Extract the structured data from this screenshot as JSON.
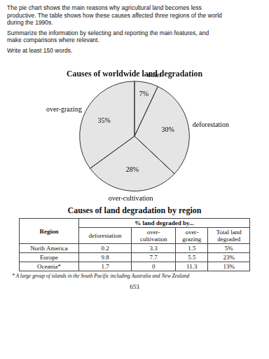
{
  "chart_data": {
    "type": "pie",
    "title": "Causes of worldwide land degradation",
    "categories": [
      "other",
      "deforestation",
      "over-cultivation",
      "over-grazing"
    ],
    "values": [
      7,
      30,
      28,
      35
    ],
    "value_labels": [
      "7%",
      "30%",
      "28%",
      "35%"
    ],
    "data_labels": true
  },
  "text_paragraphs": [
    [
      "The pie chart shows the main reasons why agricultural land becomes less",
      "productive. The table shows how these causes affected three regions of the world",
      "during the 1990s."
    ],
    [
      "Summarize the information by selecting and reporting the main features, and",
      "make comparisons where relevant."
    ],
    [
      "Write at least 150 words."
    ]
  ],
  "table": {
    "title": "Causes of land degradation by region",
    "row_header": "Region",
    "group_header": "% land degraded by...",
    "columns": [
      "deforestation",
      "over-\ncultivation",
      "over-\ngrazing",
      "Total land\ndegraded"
    ],
    "rows": [
      [
        "North America",
        "0.2",
        "3.3",
        "1.5",
        "5%"
      ],
      [
        "Europe",
        "9.8",
        "7.7",
        "5.5",
        "23%"
      ],
      [
        "Oceania*",
        "1.7",
        "0",
        "11.3",
        "13%"
      ]
    ],
    "footnote": "* A large group of islands in the South Pacific including Australia and New Zealand"
  },
  "page_number": "653"
}
